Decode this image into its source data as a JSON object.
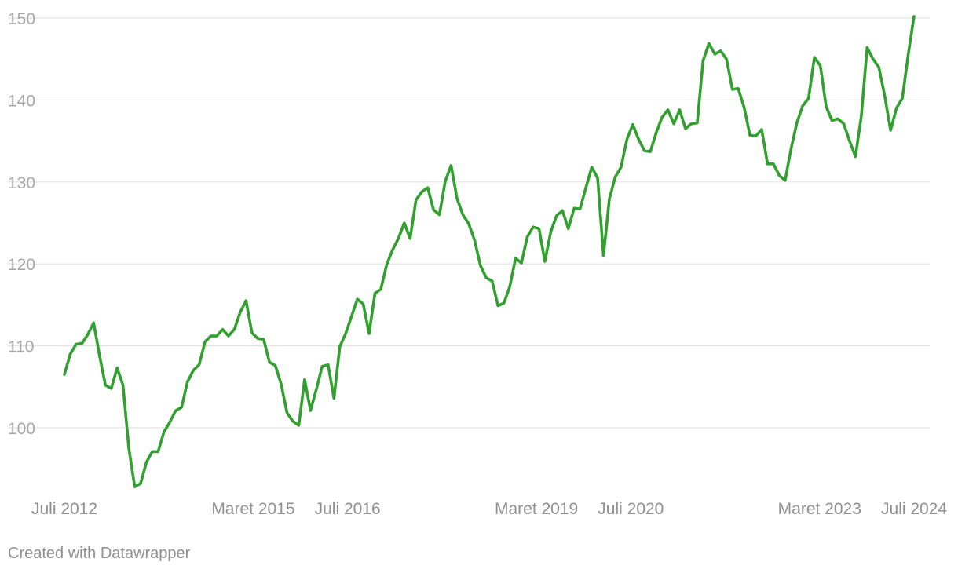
{
  "chart_data": {
    "type": "line",
    "title": "",
    "xlabel": "",
    "ylabel": "",
    "ylim": [
      92,
      151
    ],
    "yticks": [
      100,
      110,
      120,
      130,
      140,
      150
    ],
    "grid": "horizontal",
    "line_color": "#31a02e",
    "x_start": "Juli 2012",
    "x_end": "Juli 2024",
    "x_ticks": [
      {
        "label": "Juli 2012",
        "date": "2012-07"
      },
      {
        "label": "Maret 2015",
        "date": "2015-03"
      },
      {
        "label": "Juli 2016",
        "date": "2016-07"
      },
      {
        "label": "Maret 2019",
        "date": "2019-03"
      },
      {
        "label": "Juli 2020",
        "date": "2020-07"
      },
      {
        "label": "Maret 2023",
        "date": "2023-03"
      },
      {
        "label": "Juli 2024",
        "date": "2024-07"
      }
    ],
    "series": [
      {
        "values": [
          106.5,
          109.0,
          110.2,
          110.3,
          111.4,
          112.8,
          108.8,
          105.2,
          104.8,
          107.3,
          105.2,
          97.5,
          92.8,
          93.2,
          95.8,
          97.1,
          97.1,
          99.5,
          100.7,
          102.1,
          102.5,
          105.6,
          107.0,
          107.7,
          110.5,
          111.2,
          111.2,
          112.0,
          111.2,
          112.0,
          114.1,
          115.5,
          111.6,
          110.9,
          110.8,
          108.0,
          107.6,
          105.3,
          101.8,
          100.8,
          100.3,
          105.9,
          102.1,
          104.7,
          107.5,
          107.7,
          103.6,
          109.9,
          111.5,
          113.6,
          115.7,
          115.1,
          111.5,
          116.4,
          116.9,
          119.9,
          121.7,
          123.1,
          125.0,
          123.1,
          127.8,
          128.8,
          129.3,
          126.6,
          126.0,
          130.1,
          132.0,
          128.0,
          126.0,
          124.9,
          122.9,
          119.8,
          118.3,
          117.9,
          114.9,
          115.2,
          117.2,
          120.7,
          120.1,
          123.3,
          124.5,
          124.3,
          120.3,
          123.9,
          125.9,
          126.5,
          124.3,
          126.8,
          126.7,
          129.3,
          131.8,
          130.5,
          121.0,
          127.9,
          130.6,
          131.8,
          135.2,
          137.0,
          135.2,
          133.8,
          133.7,
          136.0,
          137.9,
          138.8,
          137.1,
          138.8,
          136.5,
          137.1,
          137.2,
          144.8,
          146.9,
          145.6,
          146.0,
          145.0,
          141.3,
          141.4,
          139.1,
          135.7,
          135.6,
          136.4,
          132.2,
          132.2,
          130.8,
          130.2,
          134.0,
          137.2,
          139.3,
          140.2,
          145.2,
          144.2,
          139.2,
          137.5,
          137.7,
          137.1,
          135.0,
          133.1,
          138.0,
          146.4,
          145.0,
          144.0,
          140.5,
          136.3,
          139.0,
          140.2,
          145.5,
          150.2
        ]
      }
    ]
  },
  "footer": {
    "credit": "Created with Datawrapper"
  }
}
